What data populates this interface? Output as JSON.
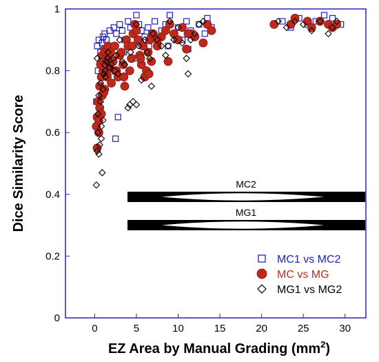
{
  "chart_data": {
    "type": "scatter",
    "title": "",
    "xlabel": "EZ Area by Manual Grading (mm",
    "xlabel_sup": "2",
    "xlabel_end": ")",
    "ylabel": "Dice Similarity Score",
    "xlim": [
      -3.5,
      32.5
    ],
    "ylim": [
      0,
      1
    ],
    "xticks": [
      0,
      5,
      10,
      15,
      20,
      25,
      30
    ],
    "yticks": [
      0,
      0.2,
      0.4,
      0.6,
      0.8,
      1
    ],
    "ytick_labels": [
      "0",
      "0.2",
      "0.4",
      "0.6",
      "0.8",
      "1"
    ],
    "grid": false,
    "legend_position": "bottom-right",
    "series": [
      {
        "name": "MC1 vs MC2",
        "marker": "square-open",
        "color": "#1f1fbf",
        "x": [
          0.3,
          0.5,
          0.7,
          0.9,
          1.0,
          1.2,
          1.4,
          1.6,
          1.8,
          2.0,
          2.3,
          2.6,
          3.0,
          3.3,
          3.6,
          4.0,
          4.3,
          4.6,
          5.0,
          5.3,
          5.6,
          6.0,
          6.4,
          6.8,
          7.2,
          7.6,
          8.0,
          8.5,
          9.0,
          9.5,
          10.0,
          10.5,
          11.0,
          11.5,
          12.0,
          12.5,
          13.0,
          13.5,
          14.0,
          0.4,
          0.8,
          1.1,
          2.5,
          3.5,
          5.5,
          8.8,
          11.2,
          21.5,
          22.5,
          23.5,
          24.5,
          25.5,
          26.5,
          27.5,
          28.5,
          29.5,
          0.6,
          1.3,
          2.1,
          4.8,
          6.5,
          9.8,
          13.2,
          0.2,
          1.7,
          2.8
        ],
        "y": [
          0.88,
          0.9,
          0.86,
          0.89,
          0.91,
          0.92,
          0.9,
          0.87,
          0.93,
          0.88,
          0.94,
          0.92,
          0.95,
          0.93,
          0.9,
          0.96,
          0.94,
          0.92,
          0.98,
          0.95,
          0.93,
          0.91,
          0.94,
          0.92,
          0.96,
          0.9,
          0.93,
          0.95,
          0.98,
          0.92,
          0.94,
          0.9,
          0.96,
          0.93,
          0.91,
          0.95,
          0.89,
          0.97,
          0.94,
          0.8,
          0.83,
          0.85,
          0.58,
          0.86,
          0.89,
          0.88,
          0.87,
          0.95,
          0.96,
          0.94,
          0.97,
          0.95,
          0.96,
          0.98,
          0.97,
          0.95,
          0.75,
          0.82,
          0.78,
          0.84,
          0.88,
          0.9,
          0.92,
          0.7,
          0.86,
          0.65
        ]
      },
      {
        "name": "MC vs MG",
        "marker": "circle-filled",
        "color": "#c0281c",
        "x": [
          0.2,
          0.3,
          0.4,
          0.5,
          0.6,
          0.7,
          0.8,
          0.9,
          1.0,
          1.1,
          1.2,
          1.3,
          1.4,
          1.5,
          1.6,
          1.7,
          1.8,
          1.9,
          2.0,
          2.2,
          2.4,
          2.6,
          2.8,
          3.0,
          3.2,
          3.4,
          3.6,
          3.8,
          4.0,
          4.2,
          4.4,
          4.6,
          4.8,
          5.0,
          5.2,
          5.4,
          5.6,
          5.8,
          6.0,
          6.2,
          6.4,
          6.6,
          6.8,
          7.0,
          7.5,
          8.0,
          8.5,
          9.0,
          9.5,
          10.0,
          10.5,
          11.0,
          11.5,
          12.0,
          13.0,
          13.5,
          14.0,
          0.3,
          0.6,
          0.9,
          1.2,
          1.5,
          2.5,
          3.5,
          4.5,
          5.5,
          6.5,
          7.5,
          8.8,
          11.2,
          21.5,
          23.5,
          24.0,
          25.5,
          26.0,
          27.0,
          28.0,
          28.5,
          29.0,
          0.5,
          0.8,
          1.1
        ],
        "y": [
          0.62,
          0.65,
          0.7,
          0.6,
          0.75,
          0.82,
          0.78,
          0.85,
          0.8,
          0.83,
          0.87,
          0.86,
          0.84,
          0.8,
          0.88,
          0.85,
          0.82,
          0.86,
          0.76,
          0.83,
          0.88,
          0.8,
          0.78,
          0.85,
          0.86,
          0.82,
          0.75,
          0.9,
          0.88,
          0.8,
          0.84,
          0.92,
          0.95,
          0.93,
          0.9,
          0.85,
          0.82,
          0.88,
          0.78,
          0.8,
          0.86,
          0.9,
          0.83,
          0.92,
          0.88,
          0.91,
          0.93,
          0.95,
          0.92,
          0.9,
          0.94,
          0.87,
          0.92,
          0.91,
          0.89,
          0.95,
          0.93,
          0.55,
          0.68,
          0.72,
          0.74,
          0.78,
          0.8,
          0.78,
          0.88,
          0.84,
          0.79,
          0.9,
          0.83,
          0.92,
          0.95,
          0.95,
          0.97,
          0.96,
          0.94,
          0.96,
          0.95,
          0.94,
          0.95,
          0.64,
          0.66,
          0.73
        ]
      },
      {
        "name": "MG1 vs MG2",
        "marker": "diamond-open",
        "color": "#000000",
        "x": [
          0.2,
          0.3,
          0.4,
          0.5,
          0.6,
          0.7,
          0.8,
          0.9,
          1.0,
          1.1,
          1.2,
          1.3,
          1.4,
          1.5,
          1.6,
          1.8,
          2.0,
          2.2,
          2.4,
          2.6,
          2.8,
          3.0,
          3.3,
          3.6,
          4.0,
          4.3,
          4.6,
          5.0,
          5.3,
          5.6,
          6.0,
          6.3,
          6.6,
          7.0,
          7.5,
          8.0,
          8.5,
          9.0,
          9.5,
          10.0,
          10.5,
          11.0,
          11.5,
          12.0,
          12.5,
          13.0,
          0.3,
          0.5,
          0.8,
          1.0,
          4.2,
          5.0,
          6.8,
          8.8,
          11.2,
          22.0,
          23.0,
          24.0,
          25.0,
          26.0,
          27.0,
          28.0,
          28.5,
          29.0,
          0.4,
          0.7,
          1.2
        ],
        "y": [
          0.43,
          0.54,
          0.6,
          0.53,
          0.56,
          0.7,
          0.62,
          0.47,
          0.74,
          0.79,
          0.82,
          0.78,
          0.83,
          0.84,
          0.86,
          0.81,
          0.82,
          0.84,
          0.8,
          0.85,
          0.79,
          0.9,
          0.83,
          0.82,
          0.68,
          0.86,
          0.7,
          0.69,
          0.88,
          0.77,
          0.9,
          0.86,
          0.84,
          0.92,
          0.9,
          0.88,
          0.85,
          0.96,
          0.9,
          0.94,
          0.89,
          0.84,
          0.9,
          0.92,
          0.95,
          0.96,
          0.84,
          0.72,
          0.58,
          0.64,
          0.69,
          0.95,
          0.75,
          0.88,
          0.79,
          0.96,
          0.94,
          0.96,
          0.95,
          0.93,
          0.96,
          0.92,
          0.94,
          0.96,
          0.66,
          0.76,
          0.8
        ]
      }
    ]
  },
  "inset": {
    "top_label": "MC2",
    "bottom_label": "MG1"
  }
}
